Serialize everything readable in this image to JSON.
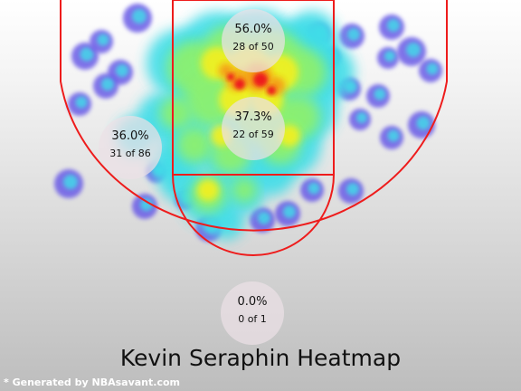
{
  "chart_data": {
    "type": "heatmap",
    "title": "Kevin Seraphin Heatmap",
    "credit": "* Generated by NBAsavant.com",
    "colorscale": [
      "#6b5ce6",
      "#40dde8",
      "#8cf070",
      "#f0f020",
      "#f49a18",
      "#ee1f1f"
    ],
    "court_line_color": "#ee1c1c",
    "zones": [
      {
        "name": "restricted-area",
        "pct": "56.0%",
        "made": 28,
        "attempts": 50,
        "label": "28 of 50"
      },
      {
        "name": "paint",
        "pct": "37.3%",
        "made": 22,
        "attempts": 59,
        "label": "22 of 59"
      },
      {
        "name": "mid-range-left",
        "pct": "36.0%",
        "made": 31,
        "attempts": 86,
        "label": "31 of 86"
      },
      {
        "name": "backcourt",
        "pct": "0.0%",
        "made": 0,
        "attempts": 1,
        "label": "0 of 1"
      }
    ]
  }
}
